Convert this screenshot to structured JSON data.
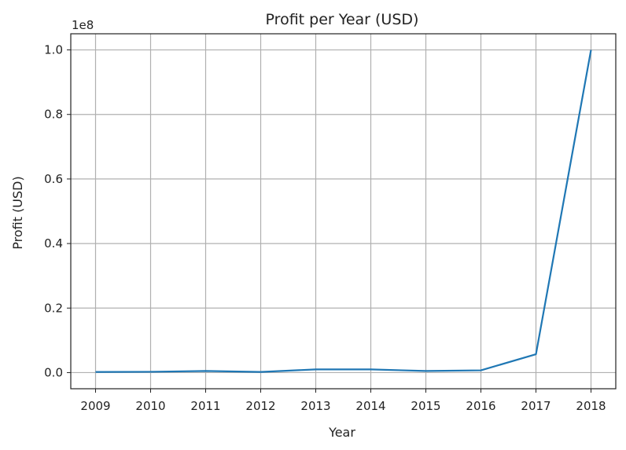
{
  "chart_data": {
    "type": "line",
    "title": "Profit per Year (USD)",
    "xlabel": "Year",
    "ylabel": "Profit (USD)",
    "offset_label": "1e8",
    "x": [
      2009,
      2010,
      2011,
      2012,
      2013,
      2014,
      2015,
      2016,
      2017,
      2018
    ],
    "series": [
      {
        "values": [
          200000,
          250000,
          500000,
          200000,
          1000000,
          1000000,
          500000,
          700000,
          5700000,
          100000000
        ],
        "color": "#1f77b4"
      }
    ],
    "xticks": [
      "2009",
      "2010",
      "2011",
      "2012",
      "2013",
      "2014",
      "2015",
      "2016",
      "2017",
      "2018"
    ],
    "yticks": [
      0,
      20000000,
      40000000,
      60000000,
      80000000,
      100000000
    ],
    "ytick_labels": [
      "0.0",
      "0.2",
      "0.4",
      "0.6",
      "0.8",
      "1.0"
    ],
    "xlim": [
      2008.55,
      2018.45
    ],
    "ylim": [
      -5000000,
      105000000
    ],
    "grid": true,
    "legend": "none"
  }
}
